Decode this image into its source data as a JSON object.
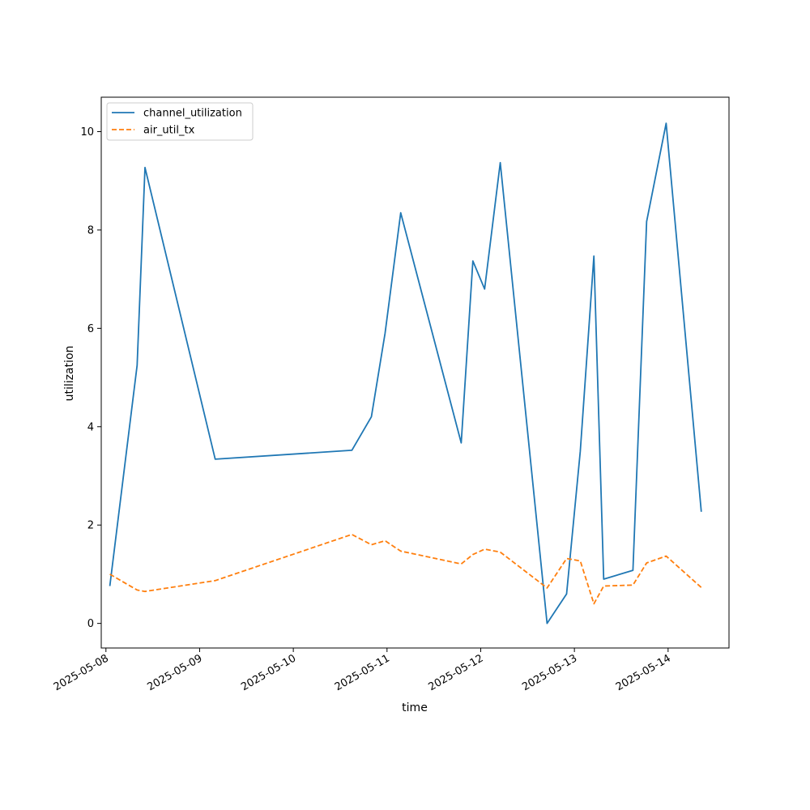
{
  "chart_data": {
    "type": "line",
    "title": "",
    "xlabel": "time",
    "ylabel": "utilization",
    "xlim": [
      "2025-05-07 22:48",
      "2025-05-14 15:36"
    ],
    "ylim": [
      -0.5,
      10.7
    ],
    "x_ticks": [
      "2025-05-08",
      "2025-05-09",
      "2025-05-10",
      "2025-05-11",
      "2025-05-12",
      "2025-05-13",
      "2025-05-14"
    ],
    "y_ticks": [
      0,
      2,
      4,
      6,
      8,
      10
    ],
    "grid": false,
    "legend_position": "upper-left",
    "series": [
      {
        "name": "channel_utilization",
        "color": "#1f77b4",
        "style": "solid",
        "points": [
          [
            "2025-05-08 01:00",
            0.76
          ],
          [
            "2025-05-08 08:00",
            5.25
          ],
          [
            "2025-05-08 10:00",
            9.27
          ],
          [
            "2025-05-09 04:00",
            3.34
          ],
          [
            "2025-05-10 15:00",
            3.52
          ],
          [
            "2025-05-10 20:00",
            4.2
          ],
          [
            "2025-05-10 23:30",
            5.9
          ],
          [
            "2025-05-11 03:30",
            8.35
          ],
          [
            "2025-05-11 19:00",
            3.67
          ],
          [
            "2025-05-11 22:00",
            7.37
          ],
          [
            "2025-05-12 01:00",
            6.8
          ],
          [
            "2025-05-12 05:00",
            9.37
          ],
          [
            "2025-05-12 17:00",
            0.0
          ],
          [
            "2025-05-12 22:00",
            0.6
          ],
          [
            "2025-05-13 01:30",
            3.5
          ],
          [
            "2025-05-13 05:00",
            7.47
          ],
          [
            "2025-05-13 07:30",
            0.9
          ],
          [
            "2025-05-13 15:00",
            1.08
          ],
          [
            "2025-05-13 18:30",
            8.17
          ],
          [
            "2025-05-13 23:30",
            10.17
          ],
          [
            "2025-05-14 08:30",
            2.27
          ]
        ]
      },
      {
        "name": "air_util_tx",
        "color": "#ff7f0e",
        "style": "dashed",
        "points": [
          [
            "2025-05-08 01:00",
            1.0
          ],
          [
            "2025-05-08 08:00",
            0.68
          ],
          [
            "2025-05-08 10:00",
            0.65
          ],
          [
            "2025-05-09 04:00",
            0.87
          ],
          [
            "2025-05-10 15:00",
            1.81
          ],
          [
            "2025-05-10 20:00",
            1.6
          ],
          [
            "2025-05-10 23:30",
            1.68
          ],
          [
            "2025-05-11 03:30",
            1.47
          ],
          [
            "2025-05-11 19:00",
            1.21
          ],
          [
            "2025-05-11 22:00",
            1.4
          ],
          [
            "2025-05-12 01:00",
            1.51
          ],
          [
            "2025-05-12 05:00",
            1.45
          ],
          [
            "2025-05-12 17:00",
            0.72
          ],
          [
            "2025-05-12 22:00",
            1.32
          ],
          [
            "2025-05-13 01:30",
            1.27
          ],
          [
            "2025-05-13 05:00",
            0.4
          ],
          [
            "2025-05-13 07:30",
            0.76
          ],
          [
            "2025-05-13 15:00",
            0.78
          ],
          [
            "2025-05-13 18:30",
            1.23
          ],
          [
            "2025-05-13 23:30",
            1.37
          ],
          [
            "2025-05-14 08:30",
            0.73
          ]
        ]
      }
    ]
  }
}
